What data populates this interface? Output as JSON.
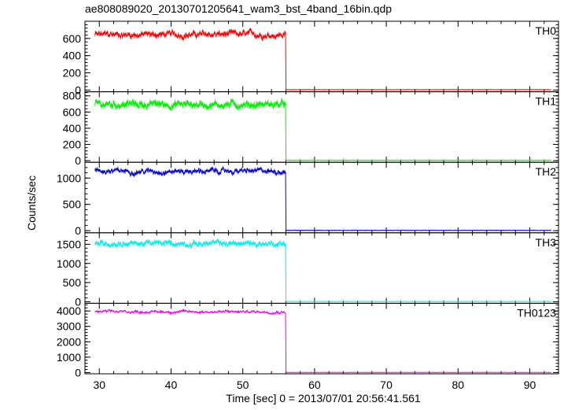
{
  "chart_data": {
    "type": "line",
    "title": "ae808089020_20130701205641_wam3_bst_4band_16bin.qdp",
    "xlabel": "Time [sec] 0 = 2013/07/01 20:56:41.561",
    "ylabel": "Counts/sec",
    "xlim": [
      28,
      94
    ],
    "x_ticks": [
      30,
      40,
      50,
      60,
      70,
      80,
      90
    ],
    "x_step": 0.0625,
    "drop_x": 56.0,
    "grid": false,
    "panels": [
      {
        "name": "TH0",
        "color": "#ff0000",
        "ylim": [
          -20,
          800
        ],
        "y_ticks": [
          0,
          200,
          400,
          600
        ],
        "on_level": 645,
        "noise": 45,
        "off_level": 4
      },
      {
        "name": "TH1",
        "color": "#00ee00",
        "ylim": [
          -20,
          850
        ],
        "y_ticks": [
          0,
          200,
          400,
          600,
          800
        ],
        "on_level": 695,
        "noise": 55,
        "off_level": 4
      },
      {
        "name": "TH2",
        "color": "#0000dd",
        "ylim": [
          -40,
          1300
        ],
        "y_ticks": [
          0,
          500,
          1000
        ],
        "on_level": 1130,
        "noise": 60,
        "off_level": 6
      },
      {
        "name": "TH3",
        "color": "#00eeee",
        "ylim": [
          -40,
          1800
        ],
        "y_ticks": [
          0,
          500,
          1000,
          1500
        ],
        "on_level": 1520,
        "noise": 90,
        "off_level": 6
      },
      {
        "name": "TH0123",
        "color": "#ee00ee",
        "ylim": [
          -80,
          4500
        ],
        "y_ticks": [
          0,
          1000,
          2000,
          3000,
          4000
        ],
        "on_level": 3950,
        "noise": 110,
        "off_level": 10
      }
    ]
  }
}
